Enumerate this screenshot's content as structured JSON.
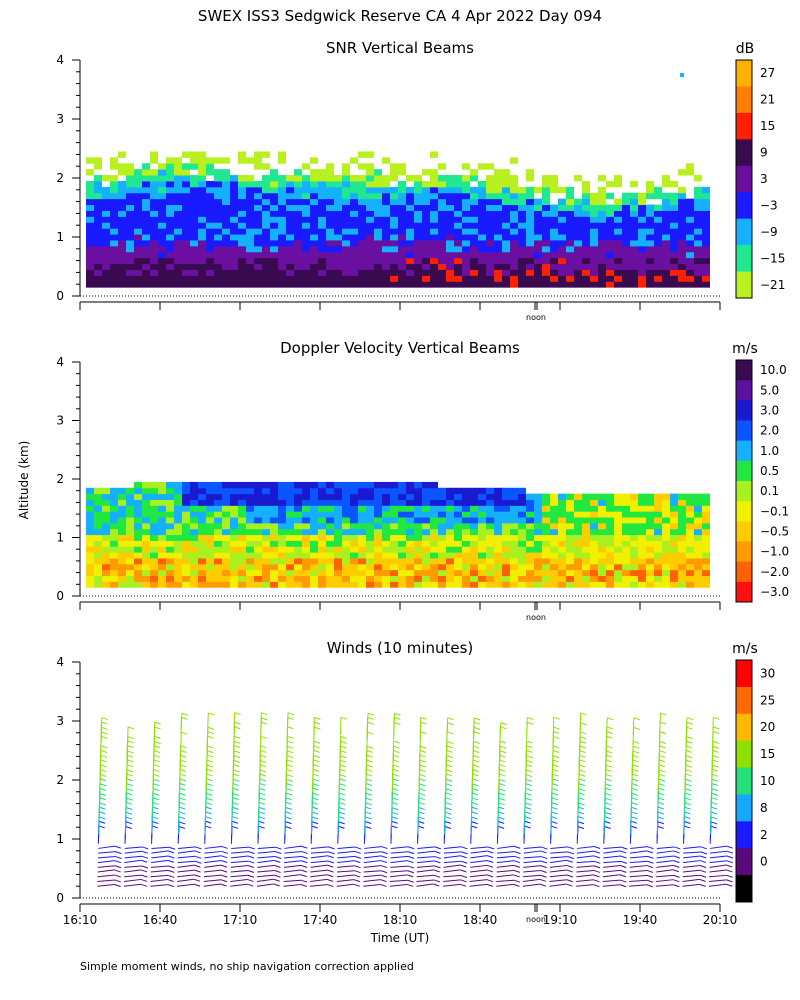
{
  "title": "SWEX ISS3 Sedgwick Reserve CA    4 Apr 2022 Day 094",
  "ylabel": "Altitude (km)",
  "xlabel": "Time (UT)",
  "footnote": "Simple moment winds, no ship navigation correction applied",
  "noon_label": "noon",
  "chart_data": [
    {
      "type": "heatmap",
      "title": "SNR Vertical Beams",
      "unit": "dB",
      "ylim": [
        0,
        4
      ],
      "yticks": [
        "0",
        "1",
        "2",
        "3",
        "4"
      ],
      "colorbar": {
        "labels": [
          "27",
          "21",
          "15",
          "9",
          "3",
          "−3",
          "−9",
          "−15",
          "−21"
        ],
        "colors": [
          "#ffb000",
          "#ff7d00",
          "#ff2000",
          "#3a0a50",
          "#6a0fa0",
          "#1a1aff",
          "#15b0ff",
          "#20e890",
          "#b8f020"
        ]
      },
      "layers_km": [
        {
          "band": "snr 9..15 (dark purple)",
          "from": 0.15,
          "to": 0.55
        },
        {
          "band": "snr 3..9 (purple)",
          "from": 0.55,
          "to": 0.85
        },
        {
          "band": "snr -3..3 (blue)",
          "from": 0.85,
          "to": 1.65
        },
        {
          "band": "snr -9..-3 (cyan)",
          "from": 0.7,
          "to": 1.75
        },
        {
          "band": "snr -15..-9 (green)",
          "from": 1.55,
          "to": 1.9
        },
        {
          "band": "snr -21..-15 (yellow-green)",
          "from": 1.8,
          "to": 2.35
        }
      ]
    },
    {
      "type": "heatmap",
      "title": "Doppler Velocity Vertical Beams",
      "unit": "m/s",
      "ylim": [
        0,
        4
      ],
      "yticks": [
        "0",
        "1",
        "2",
        "3",
        "4"
      ],
      "colorbar": {
        "labels": [
          "10.0",
          "5.0",
          "3.0",
          "2.0",
          "1.0",
          "0.5",
          "0.1",
          "−0.1",
          "−0.5",
          "−1.0",
          "−2.0",
          "−3.0"
        ],
        "colors": [
          "#3a0a50",
          "#5a10a0",
          "#1a1ad0",
          "#0a55ff",
          "#15b0ff",
          "#20e840",
          "#a8f020",
          "#f0f000",
          "#ffcc00",
          "#ff9a00",
          "#ff6000",
          "#ff1010"
        ]
      }
    },
    {
      "type": "scatter",
      "title": "Winds (10 minutes)",
      "unit": "m/s",
      "ylim": [
        0,
        4
      ],
      "yticks": [
        "0",
        "1",
        "2",
        "3",
        "4"
      ],
      "xticks": [
        "16:10",
        "16:40",
        "17:10",
        "17:40",
        "18:10",
        "18:40",
        "19:10",
        "19:40",
        "20:10"
      ],
      "colorbar": {
        "labels": [
          "30",
          "25",
          "20",
          "15",
          "10",
          "8",
          "2",
          "0"
        ],
        "colors": [
          "#ff0000",
          "#ff6a00",
          "#ffb800",
          "#8ee000",
          "#22e07a",
          "#15a8ff",
          "#1a1aff",
          "#5a0a7a",
          "#000000"
        ]
      },
      "profile_times": [
        "16:10",
        "16:20",
        "16:30",
        "16:40",
        "16:50",
        "17:00",
        "17:10",
        "17:20",
        "17:30",
        "17:40",
        "17:50",
        "18:00",
        "18:10",
        "18:20",
        "18:30",
        "18:40",
        "18:50",
        "19:00",
        "19:10",
        "19:20",
        "19:30",
        "19:40",
        "19:50",
        "20:00"
      ]
    }
  ]
}
